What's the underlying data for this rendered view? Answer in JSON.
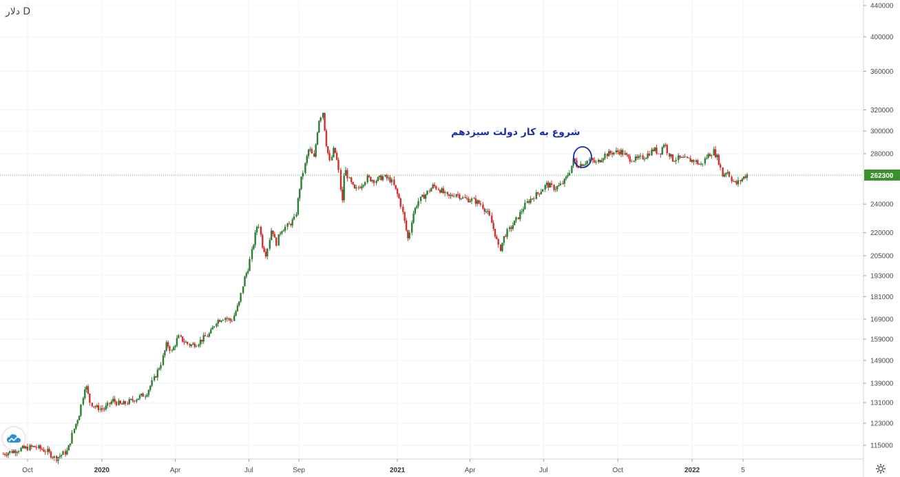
{
  "symbol": "دلار D",
  "annotation": "شروع به کار دولت سیزدهم",
  "colors": {
    "up": "#2e7d32",
    "down": "#d32f2f",
    "grid": "#f0f3fa",
    "current_line": "#4caf50",
    "price_tag": "#3c8f2f",
    "annotation": "#1b2fa8",
    "circle": "#1b2fa8"
  },
  "chart_data": {
    "type": "candlestick",
    "title": "",
    "xlabel": "",
    "ylabel": "",
    "y_scale": "log",
    "y_ticks": [
      115000,
      123000,
      131000,
      139000,
      149000,
      159000,
      169000,
      181000,
      193000,
      205000,
      220000,
      240000,
      262300,
      280000,
      300000,
      320000,
      360000,
      400000,
      440000
    ],
    "y_tick_labels": [
      "115000",
      "123000",
      "131000",
      "139000",
      "149000",
      "159000",
      "169000",
      "181000",
      "193000",
      "205000",
      "220000",
      "240000",
      "280000",
      "300000",
      "320000",
      "360000",
      "400000",
      "440000"
    ],
    "x_ticks": [
      {
        "label": "Oct",
        "date": "2019-10-01",
        "bold": false
      },
      {
        "label": "2020",
        "date": "2020-01-01",
        "bold": true
      },
      {
        "label": "Apr",
        "date": "2020-04-01",
        "bold": false
      },
      {
        "label": "Jul",
        "date": "2020-07-01",
        "bold": false
      },
      {
        "label": "Sep",
        "date": "2020-09-01",
        "bold": false
      },
      {
        "label": "2021",
        "date": "2021-01-01",
        "bold": true
      },
      {
        "label": "Apr",
        "date": "2021-04-01",
        "bold": false
      },
      {
        "label": "Jul",
        "date": "2021-07-01",
        "bold": false
      },
      {
        "label": "Oct",
        "date": "2021-10-01",
        "bold": false
      },
      {
        "label": "2022",
        "date": "2022-01-01",
        "bold": true
      },
      {
        "label": "5",
        "date": "2022-03-05",
        "bold": false
      }
    ],
    "current_price": 262300,
    "current_price_label": "262300",
    "annotation_date": "2021-08-05",
    "series_close": [
      [
        "2019-09-01",
        112000
      ],
      [
        "2019-09-20",
        113500
      ],
      [
        "2019-10-10",
        114500
      ],
      [
        "2019-10-25",
        113000
      ],
      [
        "2019-11-05",
        110500
      ],
      [
        "2019-11-20",
        113000
      ],
      [
        "2019-11-28",
        121000
      ],
      [
        "2019-12-05",
        127000
      ],
      [
        "2019-12-12",
        139000
      ],
      [
        "2019-12-18",
        131000
      ],
      [
        "2019-12-26",
        129000
      ],
      [
        "2020-01-05",
        128500
      ],
      [
        "2020-01-15",
        132000
      ],
      [
        "2020-01-25",
        130000
      ],
      [
        "2020-02-05",
        131500
      ],
      [
        "2020-02-15",
        133000
      ],
      [
        "2020-02-25",
        134500
      ],
      [
        "2020-03-05",
        140000
      ],
      [
        "2020-03-15",
        148000
      ],
      [
        "2020-03-22",
        157000
      ],
      [
        "2020-03-28",
        153000
      ],
      [
        "2020-04-05",
        160000
      ],
      [
        "2020-04-12",
        158000
      ],
      [
        "2020-04-20",
        156000
      ],
      [
        "2020-04-28",
        157000
      ],
      [
        "2020-05-05",
        159000
      ],
      [
        "2020-05-15",
        162000
      ],
      [
        "2020-05-22",
        168000
      ],
      [
        "2020-06-01",
        170000
      ],
      [
        "2020-06-10",
        168000
      ],
      [
        "2020-06-20",
        178000
      ],
      [
        "2020-06-25",
        190000
      ],
      [
        "2020-07-01",
        198000
      ],
      [
        "2020-07-08",
        215000
      ],
      [
        "2020-07-13",
        228000
      ],
      [
        "2020-07-18",
        212000
      ],
      [
        "2020-07-23",
        206000
      ],
      [
        "2020-07-30",
        224000
      ],
      [
        "2020-08-04",
        212000
      ],
      [
        "2020-08-10",
        222000
      ],
      [
        "2020-08-20",
        225000
      ],
      [
        "2020-08-28",
        230000
      ],
      [
        "2020-09-03",
        255000
      ],
      [
        "2020-09-08",
        268000
      ],
      [
        "2020-09-14",
        285000
      ],
      [
        "2020-09-20",
        276000
      ],
      [
        "2020-09-26",
        310000
      ],
      [
        "2020-10-01",
        318000
      ],
      [
        "2020-10-05",
        290000
      ],
      [
        "2020-10-10",
        272000
      ],
      [
        "2020-10-15",
        285000
      ],
      [
        "2020-10-20",
        270000
      ],
      [
        "2020-10-25",
        240000
      ],
      [
        "2020-10-28",
        268000
      ],
      [
        "2020-11-03",
        258000
      ],
      [
        "2020-11-10",
        250000
      ],
      [
        "2020-11-18",
        255000
      ],
      [
        "2020-11-25",
        260000
      ],
      [
        "2020-12-05",
        258000
      ],
      [
        "2020-12-15",
        261000
      ],
      [
        "2020-12-25",
        258000
      ],
      [
        "2021-01-05",
        242000
      ],
      [
        "2021-01-10",
        228000
      ],
      [
        "2021-01-15",
        215000
      ],
      [
        "2021-01-20",
        232000
      ],
      [
        "2021-01-27",
        242000
      ],
      [
        "2021-02-05",
        247000
      ],
      [
        "2021-02-15",
        254000
      ],
      [
        "2021-02-25",
        250000
      ],
      [
        "2021-03-05",
        245000
      ],
      [
        "2021-03-15",
        248000
      ],
      [
        "2021-03-25",
        244000
      ],
      [
        "2021-04-05",
        243000
      ],
      [
        "2021-04-15",
        240000
      ],
      [
        "2021-04-25",
        232000
      ],
      [
        "2021-05-03",
        218000
      ],
      [
        "2021-05-08",
        208000
      ],
      [
        "2021-05-14",
        218000
      ],
      [
        "2021-05-20",
        222000
      ],
      [
        "2021-05-28",
        228000
      ],
      [
        "2021-06-05",
        236000
      ],
      [
        "2021-06-12",
        242000
      ],
      [
        "2021-06-20",
        246000
      ],
      [
        "2021-06-28",
        250000
      ],
      [
        "2021-07-05",
        255000
      ],
      [
        "2021-07-15",
        252000
      ],
      [
        "2021-07-22",
        254000
      ],
      [
        "2021-07-28",
        258000
      ],
      [
        "2021-08-03",
        266000
      ],
      [
        "2021-08-08",
        276000
      ],
      [
        "2021-08-12",
        270000
      ],
      [
        "2021-08-20",
        272000
      ],
      [
        "2021-08-28",
        275000
      ],
      [
        "2021-09-05",
        272000
      ],
      [
        "2021-09-15",
        279000
      ],
      [
        "2021-09-25",
        281000
      ],
      [
        "2021-10-05",
        282000
      ],
      [
        "2021-10-15",
        276000
      ],
      [
        "2021-10-25",
        275000
      ],
      [
        "2021-11-05",
        278000
      ],
      [
        "2021-11-15",
        284000
      ],
      [
        "2021-11-22",
        280000
      ],
      [
        "2021-11-28",
        290000
      ],
      [
        "2021-12-02",
        282000
      ],
      [
        "2021-12-08",
        275000
      ],
      [
        "2021-12-15",
        276000
      ],
      [
        "2021-12-25",
        275000
      ],
      [
        "2022-01-05",
        274000
      ],
      [
        "2022-01-12",
        270000
      ],
      [
        "2022-01-20",
        278000
      ],
      [
        "2022-01-28",
        282000
      ],
      [
        "2022-02-03",
        275000
      ],
      [
        "2022-02-08",
        262000
      ],
      [
        "2022-02-14",
        266000
      ],
      [
        "2022-02-20",
        258000
      ],
      [
        "2022-02-25",
        255000
      ],
      [
        "2022-03-02",
        258000
      ],
      [
        "2022-03-07",
        261000
      ],
      [
        "2022-03-12",
        263000
      ]
    ]
  }
}
